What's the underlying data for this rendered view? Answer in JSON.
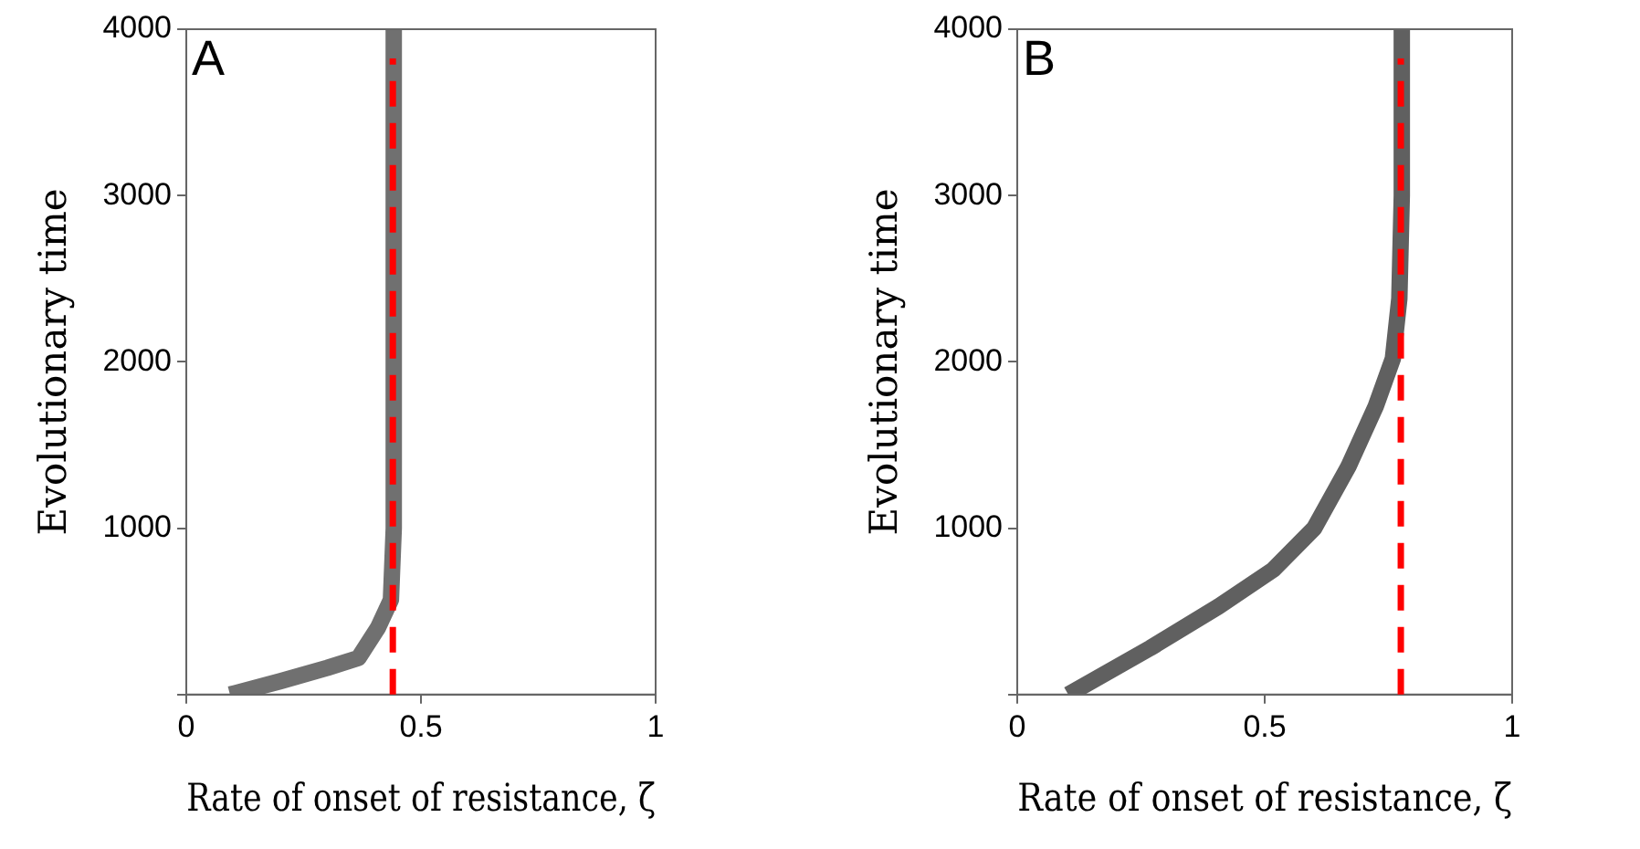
{
  "chart_data": [
    {
      "type": "line",
      "xlabel": "Rate of onset of resistance, ζ",
      "ylabel": "Evolutionary time",
      "annotations": [
        "A"
      ],
      "xlim": [
        0,
        1
      ],
      "xticks": [
        0,
        0.5,
        1
      ],
      "ylim": [
        0,
        4000
      ],
      "yticks": [
        {
          "value": 0,
          "label": null
        },
        1000,
        2000,
        3000,
        4000
      ],
      "grid": false,
      "legend": false,
      "marker": "none",
      "series": [
        {
          "color": "#707070",
          "x": [
            0.093,
            0.2,
            0.3,
            0.367,
            0.408,
            0.436,
            0.442,
            0.442
          ],
          "values": [
            0,
            80,
            160,
            220,
            400,
            570,
            1000,
            4000
          ]
        }
      ],
      "ref_lines": [
        {
          "axis": "x",
          "value": 0.44,
          "color": "#ff0000",
          "line_style": "dashed"
        }
      ]
    },
    {
      "type": "line",
      "xlabel": "Rate of onset of resistance, ζ",
      "ylabel": "Evolutionary time",
      "annotations": [
        "B"
      ],
      "xlim": [
        0,
        1
      ],
      "xticks": [
        0,
        0.5,
        1
      ],
      "ylim": [
        0,
        4000
      ],
      "yticks": [
        {
          "value": 0,
          "label": null
        },
        1000,
        2000,
        3000,
        4000
      ],
      "grid": false,
      "legend": false,
      "marker": "none",
      "series": [
        {
          "color": "#606060",
          "x": [
            0.103,
            0.269,
            0.407,
            0.517,
            0.6,
            0.669,
            0.724,
            0.759,
            0.772,
            0.777,
            0.777
          ],
          "values": [
            0,
            280,
            530,
            750,
            1000,
            1370,
            1730,
            2020,
            2380,
            3000,
            4000
          ]
        }
      ],
      "ref_lines": [
        {
          "axis": "x",
          "value": 0.775,
          "color": "#ff0000",
          "line_style": "dashed"
        }
      ]
    }
  ]
}
